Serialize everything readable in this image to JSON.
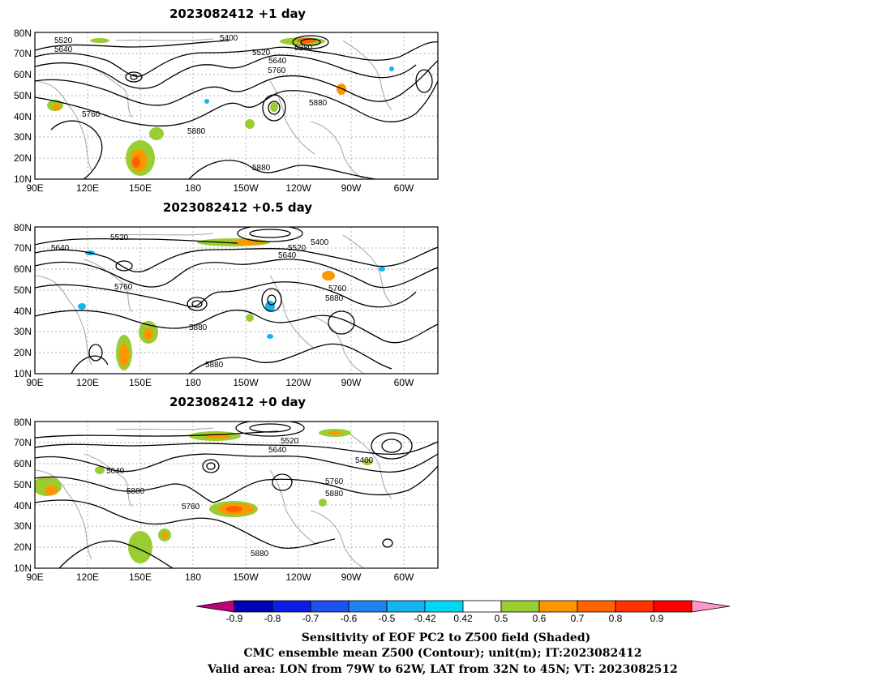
{
  "panels": [
    {
      "title": "2023082412  +1 day",
      "contour_labels": [
        "5520",
        "5640",
        "5400",
        "5520",
        "5280",
        "5640",
        "5760",
        "5880",
        "5760",
        "5880",
        "5880"
      ],
      "contour_label_units": [
        "m",
        "m",
        "m",
        "m",
        "m",
        "m",
        "m",
        "m",
        "m",
        "m",
        "m"
      ]
    },
    {
      "title": "2023082412  +0.5 day",
      "contour_labels": [
        "5520",
        "5640",
        "5400",
        "5520",
        "5640",
        "5760",
        "5760",
        "5880",
        "5880",
        "5880"
      ],
      "contour_label_units": [
        "m",
        "m",
        "m",
        "m",
        "m",
        "m",
        "m",
        "m",
        "m",
        "m"
      ]
    },
    {
      "title": "2023082412  +0 day",
      "contour_labels": [
        "5520",
        "5640",
        "5400",
        "5640",
        "5880",
        "5760",
        "5880",
        "5760",
        "5880"
      ],
      "contour_label_units": [
        "m",
        "m",
        "m",
        "m",
        "m",
        "m",
        "m",
        "m",
        "m"
      ]
    }
  ],
  "axes": {
    "lat_ticks": [
      "80N",
      "70N",
      "60N",
      "50N",
      "40N",
      "30N",
      "20N",
      "10N"
    ],
    "lon_ticks": [
      "90E",
      "120E",
      "150E",
      "180",
      "150W",
      "120W",
      "90W",
      "60W"
    ]
  },
  "colorbar": {
    "labels": [
      "-0.9",
      "-0.8",
      "-0.7",
      "-0.6",
      "-0.5",
      "-0.42",
      "0.42",
      "0.5",
      "0.6",
      "0.7",
      "0.8",
      "0.9"
    ],
    "colors": [
      "#c0007a",
      "#0000b4",
      "#0a1ee6",
      "#1e50f0",
      "#1e82f0",
      "#14b4f0",
      "#00d7f5",
      "#ffffff",
      "#9acd32",
      "#ff9600",
      "#ff6400",
      "#ff3200",
      "#ff0000",
      "#ff96c8"
    ]
  },
  "captions": [
    "Sensitivity of EOF PC2 to Z500 field (Shaded)",
    "CMC ensemble mean Z500 (Contour); unit(m); IT:2023082412",
    "Valid area: LON from 79W to 62W, LAT from 32N to 45N; VT: 2023082512"
  ]
}
